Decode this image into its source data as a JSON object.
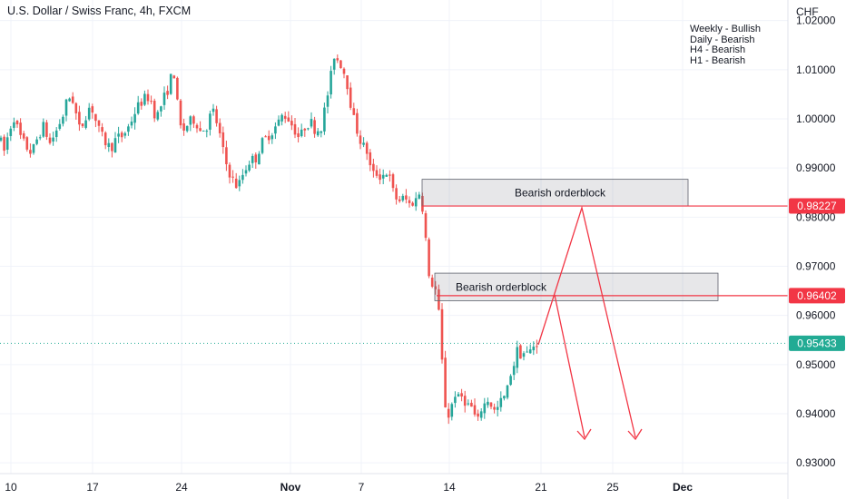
{
  "header": {
    "title": "U.S. Dollar / Swiss Franc, 4h, FXCM",
    "currency": "CHF"
  },
  "notes": [
    "Weekly - Bullish",
    "Daily - Bearish",
    "H4 - Bearish",
    "H1 - Bearish"
  ],
  "price_axis": {
    "ticks": [
      "1.02000",
      "1.01000",
      "1.00000",
      "0.99000",
      "0.98000",
      "0.97000",
      "0.96000",
      "0.95000",
      "0.94000",
      "0.93000"
    ]
  },
  "time_axis": {
    "ticks": [
      "10",
      "17",
      "24",
      "Nov",
      "7",
      "14",
      "21",
      "25",
      "Dec"
    ]
  },
  "price_tags": [
    {
      "label": "0.98227",
      "color": "#f23645"
    },
    {
      "label": "0.96402",
      "color": "#f23645"
    },
    {
      "label": "0.95433",
      "color": "#22ab94"
    }
  ],
  "orderblocks": [
    {
      "label": "Bearish orderblock",
      "top": 0.9877,
      "bottom": 0.98227
    },
    {
      "label": "Bearish orderblock",
      "top": 0.9686,
      "bottom": 0.963
    }
  ],
  "colors": {
    "up": "#26a69a",
    "down": "#ef5350",
    "projection": "#f23645",
    "current_price_line": "#22ab94"
  },
  "chart_data": {
    "type": "candlestick",
    "symbol": "USD/CHF",
    "interval": "4h",
    "ylim": [
      0.928,
      1.024
    ],
    "current_price": 0.95433,
    "path": [
      [
        0,
        0.996
      ],
      [
        4,
        0.993
      ],
      [
        10,
        0.9975
      ],
      [
        15,
        1.0005
      ],
      [
        22,
        0.9965
      ],
      [
        28,
        0.9945
      ],
      [
        35,
        0.993
      ],
      [
        42,
        0.9965
      ],
      [
        48,
        0.9985
      ],
      [
        55,
        0.995
      ],
      [
        62,
        0.9975
      ],
      [
        70,
        1.001
      ],
      [
        75,
        1.0045
      ],
      [
        80,
        1.004
      ],
      [
        88,
        0.9975
      ],
      [
        95,
        1.001
      ],
      [
        100,
        1.003
      ],
      [
        108,
        0.998
      ],
      [
        115,
        0.9955
      ],
      [
        122,
        0.994
      ],
      [
        128,
        0.996
      ],
      [
        135,
        0.9965
      ],
      [
        142,
        0.9985
      ],
      [
        150,
        1.002
      ],
      [
        158,
        1.004
      ],
      [
        165,
        1.0045
      ],
      [
        172,
        1.0
      ],
      [
        180,
        1.004
      ],
      [
        186,
        1.0065
      ],
      [
        191,
        1.0105
      ],
      [
        195,
        1.0035
      ],
      [
        200,
        0.997
      ],
      [
        205,
        0.9985
      ],
      [
        210,
        0.9995
      ],
      [
        215,
        1.0
      ],
      [
        220,
        0.9975
      ],
      [
        228,
        0.9985
      ],
      [
        234,
        1.002
      ],
      [
        240,
        0.9985
      ],
      [
        248,
        0.9915
      ],
      [
        255,
        0.988
      ],
      [
        262,
        0.986
      ],
      [
        268,
        0.989
      ],
      [
        275,
        0.9915
      ],
      [
        282,
        0.992
      ],
      [
        288,
        0.995
      ],
      [
        295,
        0.9965
      ],
      [
        300,
        0.9975
      ],
      [
        306,
        0.999
      ],
      [
        312,
        1.001
      ],
      [
        318,
        1.0
      ],
      [
        324,
        0.998
      ],
      [
        330,
        0.996
      ],
      [
        336,
        0.9985
      ],
      [
        342,
        0.9995
      ],
      [
        348,
        0.9975
      ],
      [
        354,
        0.9985
      ],
      [
        360,
        1.004
      ],
      [
        364,
        1.008
      ],
      [
        368,
        1.013
      ],
      [
        372,
        1.012
      ],
      [
        376,
        1.011
      ],
      [
        380,
        1.009
      ],
      [
        384,
        1.006
      ],
      [
        388,
        1.001
      ],
      [
        392,
        0.9985
      ],
      [
        396,
        0.996
      ],
      [
        400,
        0.9945
      ],
      [
        404,
        0.9935
      ],
      [
        408,
        0.99
      ],
      [
        412,
        0.9885
      ],
      [
        416,
        0.989
      ],
      [
        420,
        0.988
      ],
      [
        425,
        0.9895
      ],
      [
        430,
        0.9875
      ],
      [
        434,
        0.9845
      ],
      [
        438,
        0.9835
      ],
      [
        442,
        0.9835
      ],
      [
        446,
        0.984
      ],
      [
        450,
        0.9825
      ],
      [
        454,
        0.983
      ],
      [
        458,
        0.9835
      ],
      [
        462,
        0.985
      ],
      [
        464,
        0.987
      ],
      [
        466,
        0.98
      ],
      [
        468,
        0.977
      ],
      [
        470,
        0.974
      ],
      [
        472,
        0.968
      ],
      [
        474,
        0.9655
      ],
      [
        476,
        0.9665
      ],
      [
        478,
        0.9665
      ],
      [
        480,
        0.965
      ],
      [
        482,
        0.9635
      ],
      [
        484,
        0.959
      ],
      [
        486,
        0.954
      ],
      [
        488,
        0.947
      ],
      [
        490,
        0.9425
      ],
      [
        492,
        0.94
      ],
      [
        494,
        0.9395
      ],
      [
        498,
        0.942
      ],
      [
        502,
        0.9445
      ],
      [
        506,
        0.9425
      ],
      [
        510,
        0.944
      ],
      [
        514,
        0.9415
      ],
      [
        518,
        0.942
      ],
      [
        522,
        0.94
      ],
      [
        526,
        0.938
      ],
      [
        530,
        0.941
      ],
      [
        534,
        0.942
      ],
      [
        538,
        0.943
      ],
      [
        542,
        0.9415
      ],
      [
        546,
        0.94
      ],
      [
        550,
        0.942
      ],
      [
        554,
        0.943
      ],
      [
        558,
        0.944
      ],
      [
        562,
        0.948
      ],
      [
        566,
        0.95
      ],
      [
        570,
        0.953
      ],
      [
        574,
        0.952
      ],
      [
        578,
        0.9525
      ],
      [
        582,
        0.952
      ],
      [
        586,
        0.9535
      ],
      [
        590,
        0.9543
      ],
      [
        594,
        0.9545
      ]
    ]
  }
}
